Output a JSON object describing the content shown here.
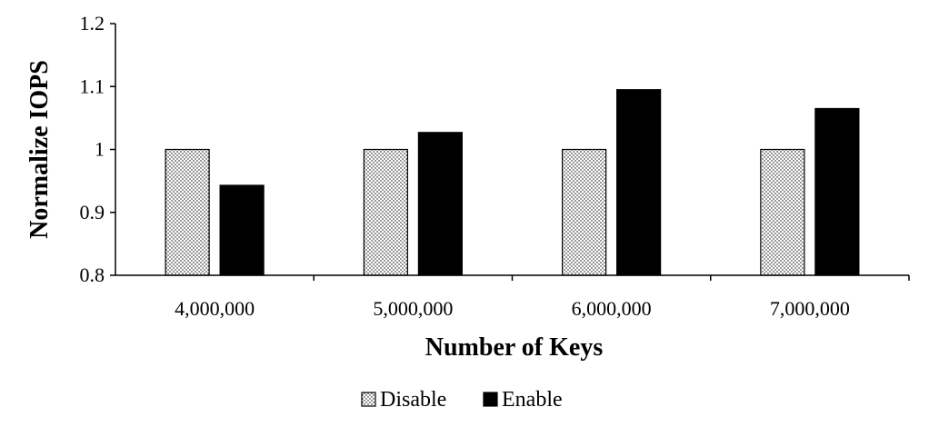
{
  "chart_data": {
    "type": "bar",
    "title": "",
    "xlabel": "Number of Keys",
    "ylabel": "Normalize IOPS",
    "categories": [
      "4,000,000",
      "5,000,000",
      "6,000,000",
      "7,000,000"
    ],
    "series": [
      {
        "name": "Disable",
        "values": [
          1.0,
          1.0,
          1.0,
          1.0
        ],
        "pattern": "dotted",
        "color": "#000000"
      },
      {
        "name": "Enable",
        "values": [
          0.943,
          1.027,
          1.095,
          1.065
        ],
        "pattern": "solid",
        "color": "#000000"
      }
    ],
    "ylim": [
      0.8,
      1.2
    ],
    "yticks": [
      0.8,
      0.9,
      1.0,
      1.1,
      1.2
    ],
    "ytick_labels": [
      "0.8",
      "0.9",
      "1",
      "1.1",
      "1.2"
    ],
    "grid": false,
    "legend_position": "bottom-center"
  }
}
